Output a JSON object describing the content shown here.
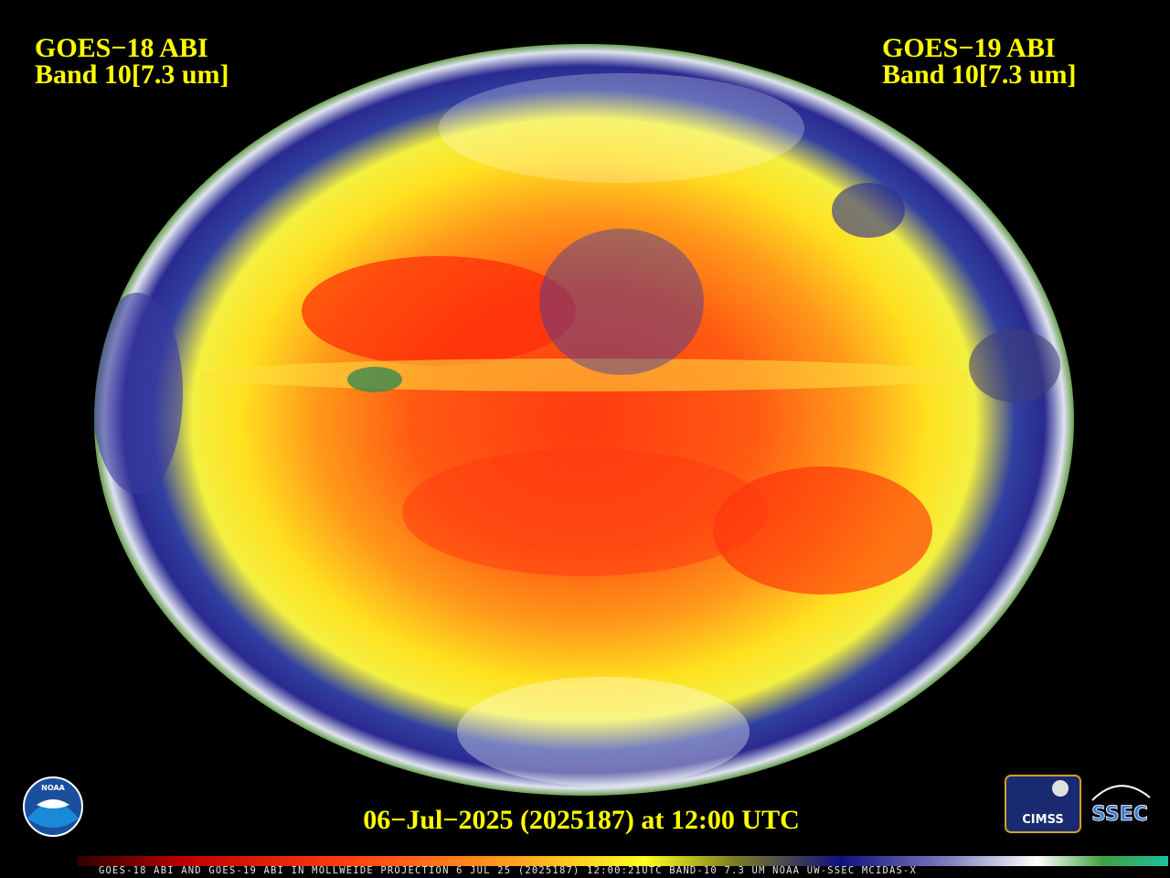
{
  "header": {
    "left": {
      "line1": "GOES−18 ABI",
      "line2": "Band 10[7.3 um]"
    },
    "right": {
      "line1": "GOES−19 ABI",
      "line2": "Band 10[7.3 um]"
    }
  },
  "timestamp": "06−Jul−2025 (2025187) at 12:00 UTC",
  "footer": "GOES-18 ABI AND GOES-19 ABI IN MOLLWEIDE PROJECTION 6 JUL 25 (2025187) 12:00:21UTC BAND-10 7.3 UM NOAA UW-SSEC MCIDAS-X",
  "logos": {
    "noaa": "NOAA",
    "cimss": "CIMSS",
    "ssec": "SSEC"
  }
}
